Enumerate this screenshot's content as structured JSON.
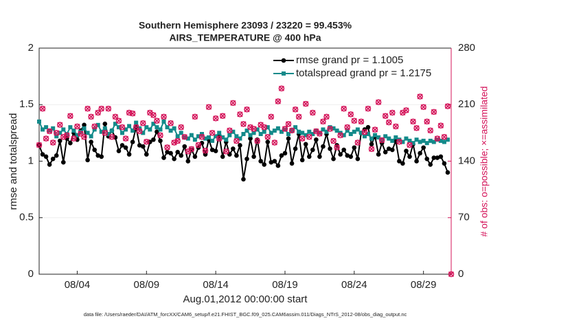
{
  "chart_data": {
    "type": "line",
    "title": [
      "Southern Hemisphere 23093 / 23220 = 99.453%",
      "AIRS_TEMPERATURE @ 400 hPa"
    ],
    "xlabel": "Aug.01,2012 00:00:00 start",
    "ylabel": "rmse and totalspread",
    "y2label": "# of obs: o=possible; ×=assimilated",
    "footnote": "data file: /Users/raeder/DAI/ATM_forcXX/CAM6_setup/f.e21.FHIST_BGC.f09_025.CAM6assim.011/Diags_NTrS_2012-08/obs_diag_output.nc",
    "xlim": [
      0.25,
      30
    ],
    "xticks": [
      {
        "value": 3,
        "label": "08/04"
      },
      {
        "value": 8,
        "label": "08/09"
      },
      {
        "value": 13,
        "label": "08/14"
      },
      {
        "value": 18,
        "label": "08/19"
      },
      {
        "value": 23,
        "label": "08/24"
      },
      {
        "value": 28,
        "label": "08/29"
      }
    ],
    "ylim": [
      0,
      2
    ],
    "yticks": [
      0,
      0.5,
      1,
      1.5,
      2
    ],
    "y2lim": [
      0,
      280
    ],
    "y2ticks": [
      0,
      70,
      140,
      210,
      280
    ],
    "grid": true,
    "legend": "upper right",
    "legend_text_color": "#0b55d9",
    "y2_color": "#d4145a",
    "x": [
      0.25,
      0.5,
      0.75,
      1,
      1.25,
      1.5,
      1.75,
      2,
      2.25,
      2.5,
      2.75,
      3,
      3.25,
      3.5,
      3.75,
      4,
      4.25,
      4.5,
      4.75,
      5,
      5.25,
      5.5,
      5.75,
      6,
      6.25,
      6.5,
      6.75,
      7,
      7.25,
      7.5,
      7.75,
      8,
      8.25,
      8.5,
      8.75,
      9,
      9.25,
      9.5,
      9.75,
      10,
      10.25,
      10.5,
      10.75,
      11,
      11.25,
      11.5,
      11.75,
      12,
      12.25,
      12.5,
      12.75,
      13,
      13.25,
      13.5,
      13.75,
      14,
      14.25,
      14.5,
      14.75,
      15,
      15.25,
      15.5,
      15.75,
      16,
      16.25,
      16.5,
      16.75,
      17,
      17.25,
      17.5,
      17.75,
      18,
      18.25,
      18.5,
      18.75,
      19,
      19.25,
      19.5,
      19.75,
      20,
      20.25,
      20.5,
      20.75,
      21,
      21.25,
      21.5,
      21.75,
      22,
      22.25,
      22.5,
      22.75,
      23,
      23.25,
      23.5,
      23.75,
      24,
      24.25,
      24.5,
      24.75,
      25,
      25.25,
      25.5,
      25.75,
      26,
      26.25,
      26.5,
      26.75,
      27,
      27.25,
      27.5,
      27.75,
      28,
      28.25,
      28.5,
      28.75,
      29,
      29.25,
      29.5,
      29.75,
      30
    ],
    "series": [
      {
        "name": "rmse grand pr = 1.1005",
        "color": "#000000",
        "marker": "circle",
        "values": [
          1.14,
          1.06,
          1.04,
          0.97,
          1.02,
          1.05,
          1.18,
          0.99,
          1.2,
          1.16,
          1.25,
          1.19,
          1.27,
          1.32,
          1.01,
          1.17,
          1.1,
          1.05,
          1.04,
          1.33,
          1.22,
          1.27,
          1.21,
          1.09,
          1.14,
          1.12,
          1.06,
          1.17,
          1.3,
          1.14,
          1.13,
          1.06,
          1.17,
          1.19,
          1.26,
          1.18,
          1.03,
          1.08,
          1.07,
          1.02,
          1.08,
          1.05,
          1.13,
          1.0,
          1.1,
          1.04,
          1.12,
          1.16,
          1.06,
          1.19,
          1.1,
          1.09,
          1.23,
          1.04,
          1.17,
          1.06,
          1.11,
          1.05,
          1.14,
          0.84,
          1.02,
          1.2,
          1.04,
          1.19,
          1.0,
          0.97,
          1.17,
          0.99,
          1.0,
          0.96,
          1.05,
          1.07,
          1.2,
          0.98,
          1.11,
          1.24,
          1.01,
          1.15,
          1.04,
          1.1,
          1.19,
          1.04,
          1.13,
          1.24,
          1.11,
          1.02,
          1.14,
          1.06,
          1.1,
          1.05,
          1.04,
          1.12,
          1.02,
          1.25,
          1.28,
          1.3,
          1.15,
          1.22,
          1.06,
          1.16,
          1.08,
          1.11,
          1.1,
          1.18,
          1.0,
          0.98,
          1.09,
          1.04,
          1.15,
          1.0,
          1.07,
          1.12,
          1.02,
          0.97,
          1.03,
          1.03,
          1.04,
          0.98,
          0.9,
          null
        ]
      },
      {
        "name": "totalspread grand pr = 1.2175",
        "color": "#138a8a",
        "marker": "square",
        "values": [
          1.35,
          1.28,
          1.3,
          1.27,
          1.29,
          1.22,
          1.25,
          1.28,
          1.24,
          1.3,
          1.27,
          1.23,
          1.26,
          1.29,
          1.25,
          1.22,
          1.28,
          1.32,
          1.26,
          1.29,
          1.24,
          1.27,
          1.33,
          1.3,
          1.25,
          1.28,
          1.31,
          1.27,
          1.34,
          1.29,
          1.25,
          1.3,
          1.28,
          1.33,
          1.3,
          1.28,
          1.35,
          1.3,
          1.27,
          1.29,
          1.22,
          1.25,
          1.21,
          1.2,
          1.23,
          1.19,
          1.22,
          1.24,
          1.2,
          1.21,
          1.18,
          1.22,
          1.25,
          1.21,
          1.19,
          1.23,
          1.26,
          1.22,
          1.2,
          1.24,
          1.27,
          1.23,
          1.25,
          1.28,
          1.24,
          1.26,
          1.3,
          1.25,
          1.27,
          1.29,
          1.26,
          1.28,
          1.24,
          1.27,
          1.3,
          1.26,
          1.25,
          1.23,
          1.26,
          1.24,
          1.27,
          1.25,
          1.28,
          1.26,
          1.3,
          1.29,
          1.27,
          1.25,
          1.23,
          1.27,
          1.24,
          1.26,
          1.28,
          1.25,
          1.22,
          1.24,
          1.2,
          1.23,
          1.21,
          1.19,
          1.22,
          1.2,
          1.18,
          1.21,
          1.19,
          1.17,
          1.2,
          1.18,
          1.16,
          1.19,
          1.17,
          1.18,
          1.16,
          1.18,
          1.17,
          1.19,
          1.18,
          1.17,
          1.19,
          null
        ]
      },
      {
        "color": "#d4145a",
        "axis": "y2",
        "marker": "obs",
        "values": [
          160,
          205,
          168,
          177,
          163,
          175,
          185,
          170,
          172,
          196,
          168,
          183,
          174,
          170,
          205,
          195,
          183,
          200,
          205,
          175,
          205,
          170,
          195,
          190,
          182,
          168,
          200,
          199,
          182,
          177,
          187,
          164,
          200,
          197,
          190,
          172,
          195,
          157,
          187,
          163,
          165,
          182,
          170,
          152,
          155,
          195,
          160,
          170,
          153,
          207,
          175,
          193,
          168,
          196,
          152,
          178,
          212,
          165,
          198,
          186,
          204,
          182,
          180,
          165,
          185,
          182,
          170,
          195,
          163,
          214,
          230,
          180,
          186,
          178,
          204,
          195,
          168,
          211,
          170,
          200,
          177,
          174,
          189,
          195,
          180,
          165,
          157,
          172,
          205,
          182,
          198,
          190,
          163,
          189,
          176,
          205,
          155,
          179,
          213,
          166,
          196,
          188,
          200,
          183,
          164,
          200,
          203,
          160,
          189,
          181,
          220,
          207,
          189,
          178,
          201,
          168,
          184,
          170,
          208,
          0
        ]
      }
    ]
  }
}
